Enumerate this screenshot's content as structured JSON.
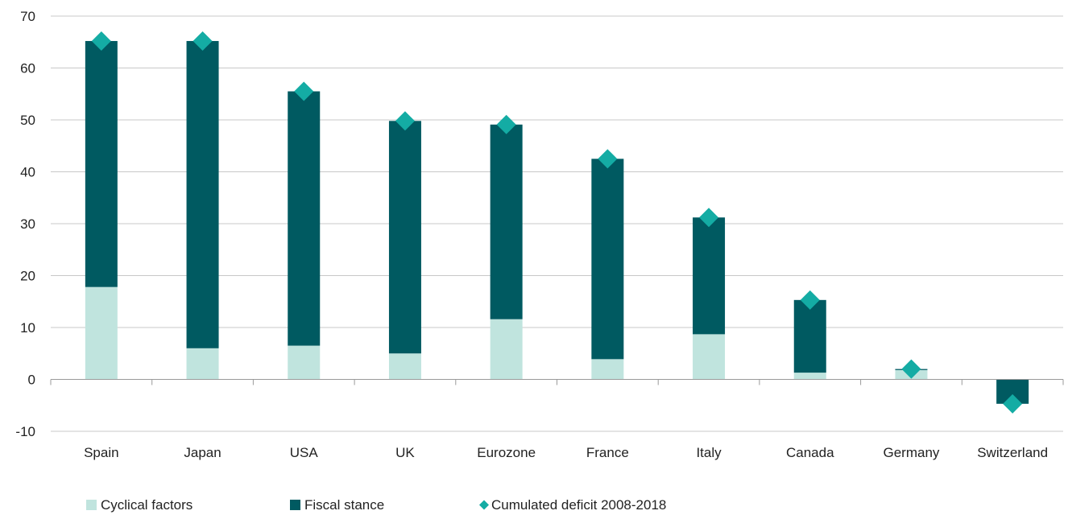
{
  "chart_data": {
    "type": "bar",
    "stacked": true,
    "categories": [
      "Spain",
      "Japan",
      "USA",
      "UK",
      "Eurozone",
      "France",
      "Italy",
      "Canada",
      "Germany",
      "Switzerland"
    ],
    "series": [
      {
        "name": "Cyclical factors",
        "kind": "bar",
        "color": "#c0e4de",
        "values": [
          17.8,
          6.0,
          6.5,
          5.0,
          11.6,
          3.9,
          8.7,
          1.3,
          1.8,
          0.0
        ]
      },
      {
        "name": "Fiscal stance",
        "kind": "bar",
        "color": "#005a61",
        "values": [
          47.4,
          59.2,
          49.0,
          44.8,
          37.5,
          38.6,
          22.5,
          14.0,
          0.2,
          -4.7
        ]
      },
      {
        "name": "Cumulated deficit 2008-2018",
        "kind": "marker",
        "marker": "diamond",
        "color": "#14aca4",
        "values": [
          65.2,
          65.2,
          55.5,
          49.8,
          49.1,
          42.5,
          31.2,
          15.3,
          2.0,
          -4.7
        ]
      }
    ],
    "y_ticks": [
      "70",
      "60",
      "50",
      "40",
      "30",
      "20",
      "10",
      "0",
      "-10"
    ],
    "ylim": [
      -10,
      70
    ],
    "grid": true,
    "legend_position": "bottom-left",
    "title": "",
    "xlabel": "",
    "ylabel": ""
  }
}
